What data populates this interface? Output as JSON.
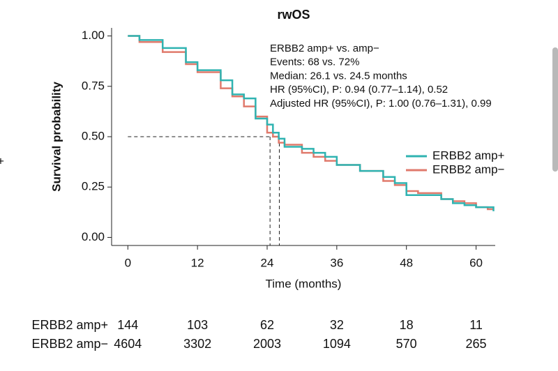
{
  "chart_data": {
    "type": "km",
    "title": "rwOS",
    "xlabel": "Time (months)",
    "ylabel": "Survival probability",
    "xlim": [
      -2.8,
      63.3
    ],
    "ylim": [
      -0.04,
      1.04
    ],
    "xticks": [
      0,
      12,
      24,
      36,
      48,
      60
    ],
    "yticks": [
      {
        "value": 0,
        "label": "0.00"
      },
      {
        "value": 0.25,
        "label": "0.25"
      },
      {
        "value": 0.5,
        "label": "0.50"
      },
      {
        "value": 0.75,
        "label": "0.75"
      },
      {
        "value": 1,
        "label": "1.00"
      }
    ],
    "x": [
      0,
      2,
      6,
      10,
      12,
      16,
      18,
      20,
      22,
      24,
      25,
      26,
      27,
      30,
      32,
      34,
      36,
      40,
      44,
      46,
      48,
      50,
      54,
      56,
      58,
      60,
      62,
      63
    ],
    "series": [
      {
        "name": "ERBB2 amp+",
        "color": "#2fb3b1",
        "values": [
          1.0,
          0.98,
          0.94,
          0.87,
          0.83,
          0.78,
          0.71,
          0.69,
          0.59,
          0.56,
          0.52,
          0.49,
          0.45,
          0.44,
          0.42,
          0.4,
          0.36,
          0.33,
          0.3,
          0.27,
          0.21,
          0.21,
          0.19,
          0.17,
          0.16,
          0.15,
          0.15,
          0.13
        ]
      },
      {
        "name": "ERBB2 amp−",
        "color": "#e07a6c",
        "values": [
          1.0,
          0.97,
          0.92,
          0.86,
          0.82,
          0.74,
          0.7,
          0.65,
          0.6,
          0.52,
          0.5,
          0.47,
          0.46,
          0.42,
          0.4,
          0.38,
          0.36,
          0.33,
          0.28,
          0.26,
          0.23,
          0.22,
          0.19,
          0.18,
          0.17,
          0.15,
          0.14,
          0.14
        ]
      }
    ],
    "median_lines": {
      "y": 0.5,
      "x": [
        24.5,
        26.1
      ]
    },
    "annotations": [
      "ERBB2 amp+ vs. amp−",
      "Events: 68 vs. 72%",
      "Median: 26.1 vs. 24.5 months",
      "HR (95%CI), P: 0.94 (0.77–1.14), 0.52",
      "Adjusted HR (95%CI), P: 1.00 (0.76–1.31), 0.99"
    ],
    "legend": "right",
    "risk_table": {
      "times": [
        0,
        12,
        24,
        36,
        48,
        60
      ],
      "rows": [
        {
          "label": "ERBB2 amp+",
          "counts": [
            144,
            103,
            62,
            32,
            18,
            11
          ]
        },
        {
          "label": "ERBB2 amp−",
          "counts": [
            4604,
            3302,
            2003,
            1094,
            570,
            265
          ]
        }
      ]
    }
  }
}
